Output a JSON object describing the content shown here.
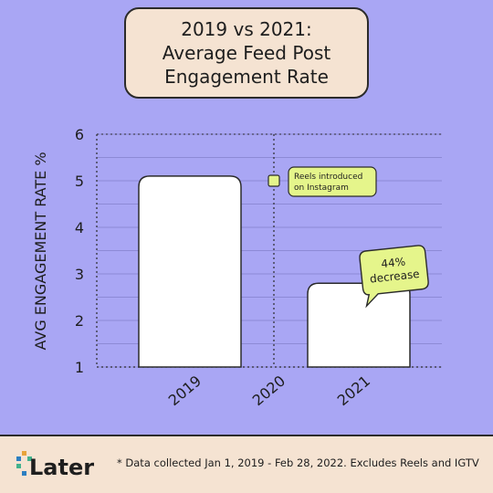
{
  "title": {
    "line1": "2019 vs 2021:",
    "line2": "Average Feed Post",
    "line3": "Engagement Rate"
  },
  "chart_data": {
    "type": "bar",
    "categories": [
      "2019",
      "2020",
      "2021"
    ],
    "values": [
      5.1,
      null,
      2.8
    ],
    "ylabel": "AVG ENGAGEMENT RATE %",
    "ylim": [
      1,
      6
    ],
    "yticks": [
      1,
      2,
      3,
      4,
      5,
      6
    ],
    "grid": true,
    "annotations": [
      {
        "text_line1": "Reels introduced",
        "text_line2": "on Instagram",
        "category": "2020",
        "y": 5
      },
      {
        "text_line1": "44%",
        "text_line2": "decrease",
        "category": "2021",
        "y": 3.1
      }
    ],
    "colors": {
      "bar_fill": "#ffffff",
      "callout_fill": "#e5f58b",
      "background": "#a9a6f4",
      "grid": "#8d8ad6"
    }
  },
  "footer": {
    "logo_text": "Later",
    "note": "* Data collected Jan 1, 2019 - Feb 28, 2022. Excludes Reels and IGTV"
  }
}
